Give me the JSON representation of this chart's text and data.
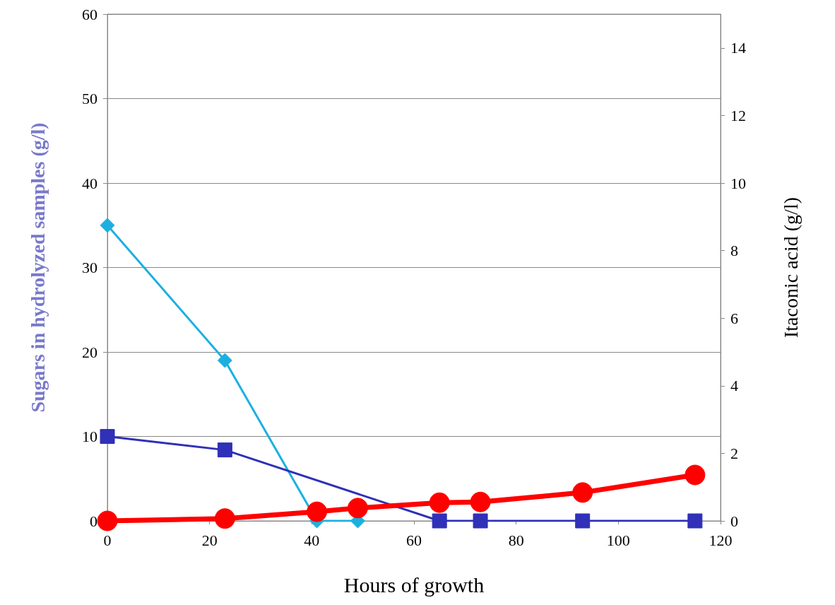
{
  "chart_data": {
    "type": "line",
    "xlabel": "Hours of growth",
    "ylabel": "Sugars in hydrolyzed samples (g/l)",
    "y2label": "Itaconic acid (g/l)",
    "x": [
      0,
      23,
      41,
      49,
      65,
      73,
      93,
      115
    ],
    "series": [
      {
        "color": "#1cb0e0",
        "marker": "diamond",
        "values": [
          35,
          19,
          0,
          0,
          null,
          null,
          null,
          null
        ]
      },
      {
        "color": "#3030b8",
        "marker": "square",
        "values": [
          10,
          8.4,
          null,
          null,
          0,
          0,
          0,
          0
        ]
      },
      {
        "color": "#ff0000",
        "marker": "circle",
        "axis": "y2",
        "values": [
          0,
          0.07,
          0.27,
          0.38,
          0.54,
          0.56,
          0.84,
          1.36
        ]
      }
    ],
    "xlim": [
      0,
      120
    ],
    "xticks": [
      0,
      20,
      40,
      60,
      80,
      100,
      120
    ],
    "ylim": [
      0,
      60
    ],
    "yticks": [
      0,
      10,
      20,
      30,
      40,
      50,
      60
    ],
    "y2lim": [
      0,
      15
    ],
    "y2ticks": [
      0,
      2,
      4,
      6,
      8,
      10,
      12,
      14
    ],
    "grid": "y"
  }
}
